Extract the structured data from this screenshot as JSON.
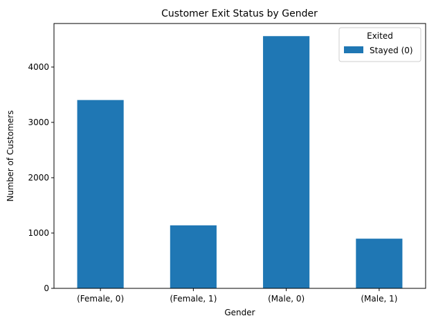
{
  "chart_data": {
    "type": "bar",
    "title": "Customer Exit Status by Gender",
    "xlabel": "Gender",
    "ylabel": "Number of Customers",
    "categories": [
      "(Female, 0)",
      "(Female, 1)",
      "(Male, 0)",
      "(Male, 1)"
    ],
    "series": [
      {
        "name": "Stayed (0)",
        "values": [
          3404,
          1139,
          4559,
          898
        ],
        "color": "#1f77b4"
      }
    ],
    "ylim": [
      0,
      4787
    ],
    "yticks": [
      0,
      1000,
      2000,
      3000,
      4000
    ],
    "grid": false,
    "legend": {
      "title": "Exited",
      "placement": "top-right"
    }
  }
}
